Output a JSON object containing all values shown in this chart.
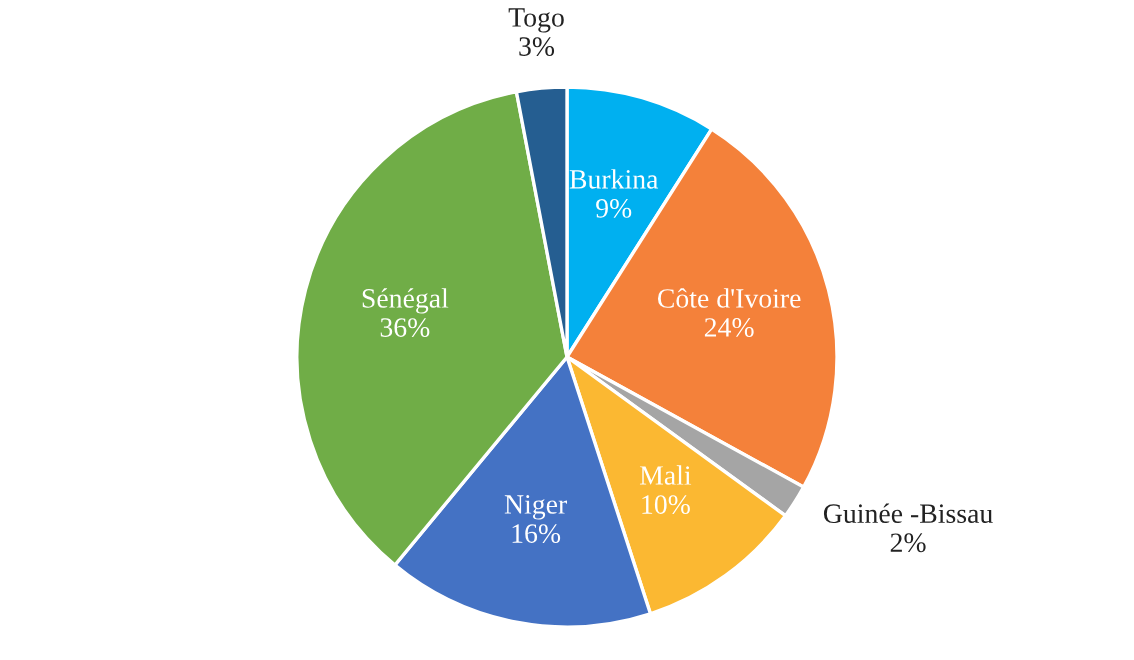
{
  "chart_data": {
    "type": "pie",
    "categories": [
      "Burkina",
      "Côte d'Ivoire",
      "Guinée -Bissau",
      "Mali",
      "Niger",
      "Sénégal",
      "Togo"
    ],
    "values": [
      9,
      24,
      2,
      10,
      16,
      36,
      3
    ],
    "value_labels": [
      "9%",
      "24%",
      "2%",
      "10%",
      "16%",
      "36%",
      "3%"
    ],
    "colors": [
      "#00b0f0",
      "#f4813a",
      "#a5a5a5",
      "#fbb832",
      "#4472c4",
      "#70ad47",
      "#255e91"
    ],
    "legend": false
  }
}
